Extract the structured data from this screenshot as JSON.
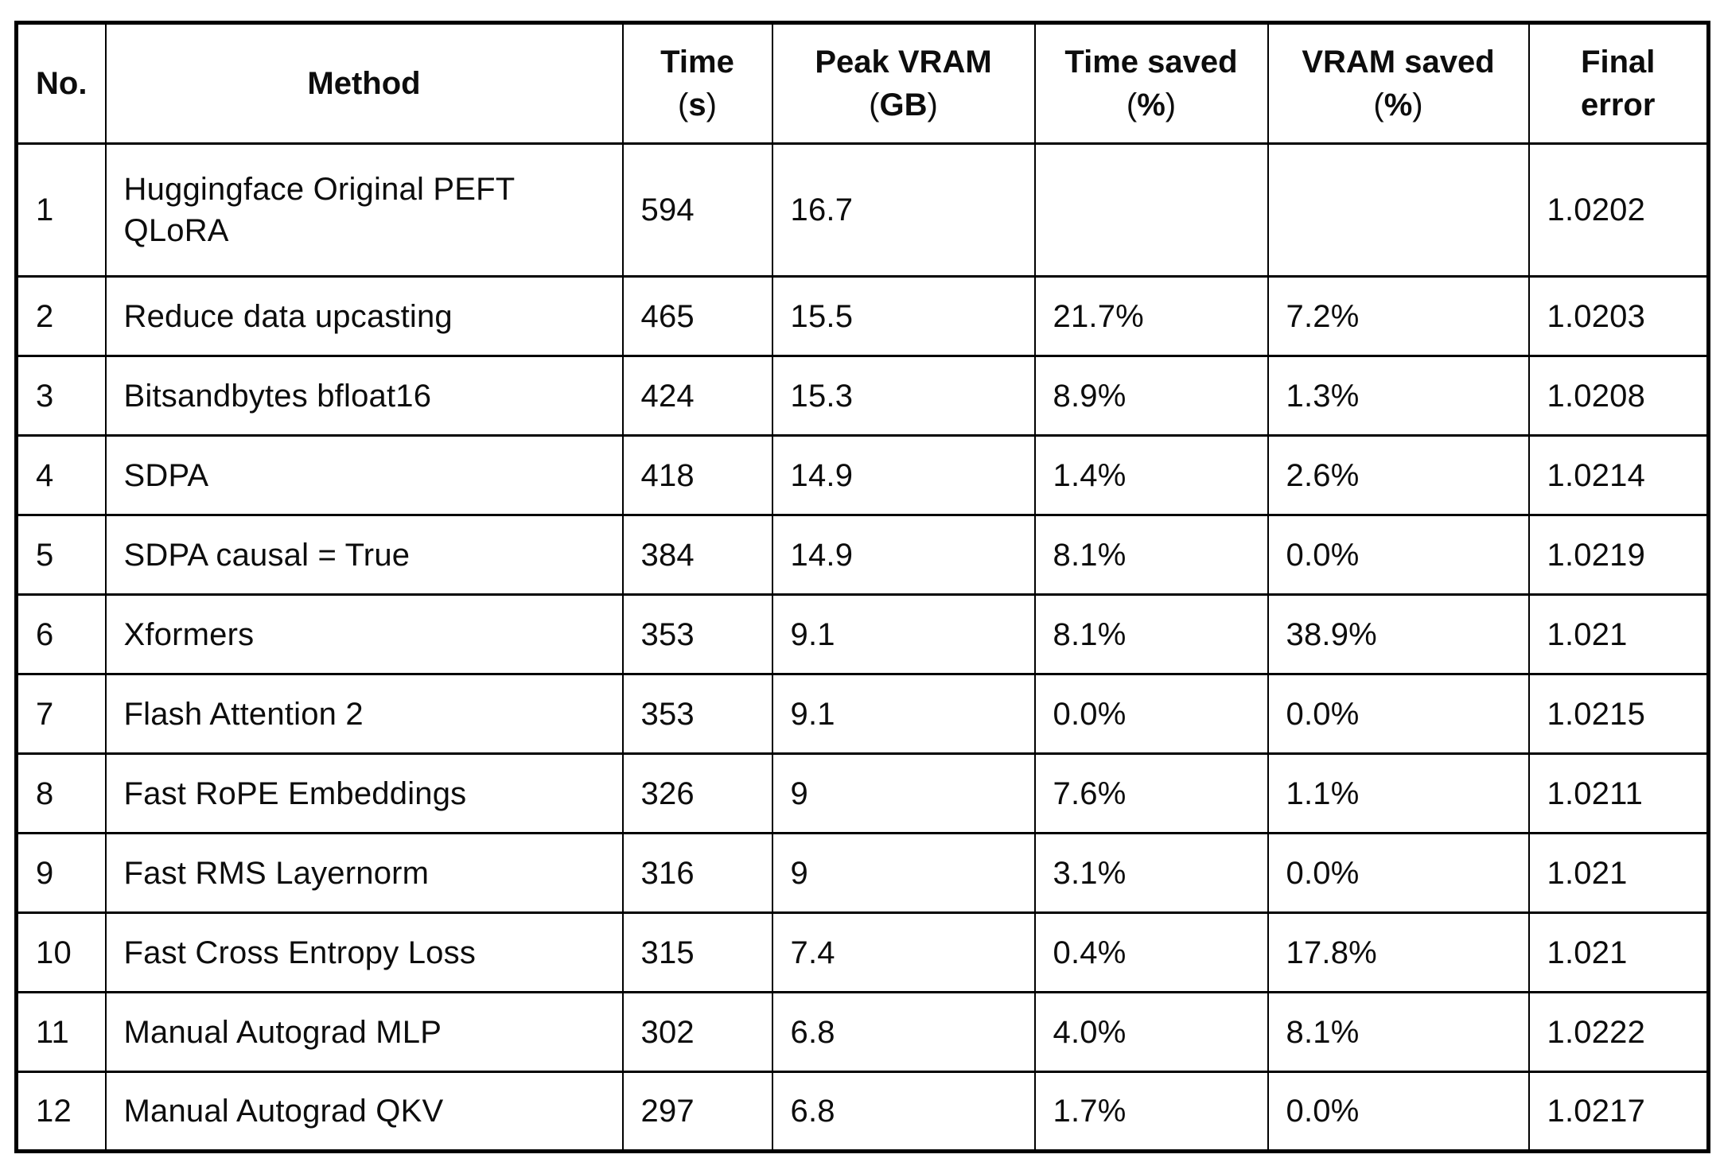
{
  "chart_data": {
    "type": "table",
    "columns": [
      {
        "title": "No.",
        "sub": ""
      },
      {
        "title": "Method",
        "sub": ""
      },
      {
        "title": "Time",
        "sub": "(s)"
      },
      {
        "title": "Peak VRAM",
        "sub": "(GB)"
      },
      {
        "title": "Time saved",
        "sub": "(%)"
      },
      {
        "title": "VRAM saved",
        "sub": "(%)"
      },
      {
        "title": "Final",
        "sub": "error"
      }
    ],
    "rows": [
      [
        "1",
        "Huggingface Original PEFT QLoRA",
        "594",
        "16.7",
        "",
        "",
        "1.0202"
      ],
      [
        "2",
        "Reduce data upcasting",
        "465",
        "15.5",
        "21.7%",
        "7.2%",
        "1.0203"
      ],
      [
        "3",
        "Bitsandbytes bfloat16",
        "424",
        "15.3",
        "8.9%",
        "1.3%",
        "1.0208"
      ],
      [
        "4",
        "SDPA",
        "418",
        "14.9",
        "1.4%",
        "2.6%",
        "1.0214"
      ],
      [
        "5",
        "SDPA causal = True",
        "384",
        "14.9",
        "8.1%",
        "0.0%",
        "1.0219"
      ],
      [
        "6",
        "Xformers",
        "353",
        "9.1",
        "8.1%",
        "38.9%",
        "1.021"
      ],
      [
        "7",
        "Flash Attention 2",
        "353",
        "9.1",
        "0.0%",
        "0.0%",
        "1.0215"
      ],
      [
        "8",
        "Fast RoPE Embeddings",
        "326",
        "9",
        "7.6%",
        "1.1%",
        "1.0211"
      ],
      [
        "9",
        "Fast RMS Layernorm",
        "316",
        "9",
        "3.1%",
        "0.0%",
        "1.021"
      ],
      [
        "10",
        "Fast Cross Entropy Loss",
        "315",
        "7.4",
        "0.4%",
        "17.8%",
        "1.021"
      ],
      [
        "11",
        "Manual Autograd MLP",
        "302",
        "6.8",
        "4.0%",
        "8.1%",
        "1.0222"
      ],
      [
        "12",
        "Manual Autograd QKV",
        "297",
        "6.8",
        "1.7%",
        "0.0%",
        "1.0217"
      ]
    ],
    "title": "",
    "grid": true,
    "text_color": "#0d0d0d",
    "border_color": "#000000",
    "background_color": "#ffffff"
  }
}
